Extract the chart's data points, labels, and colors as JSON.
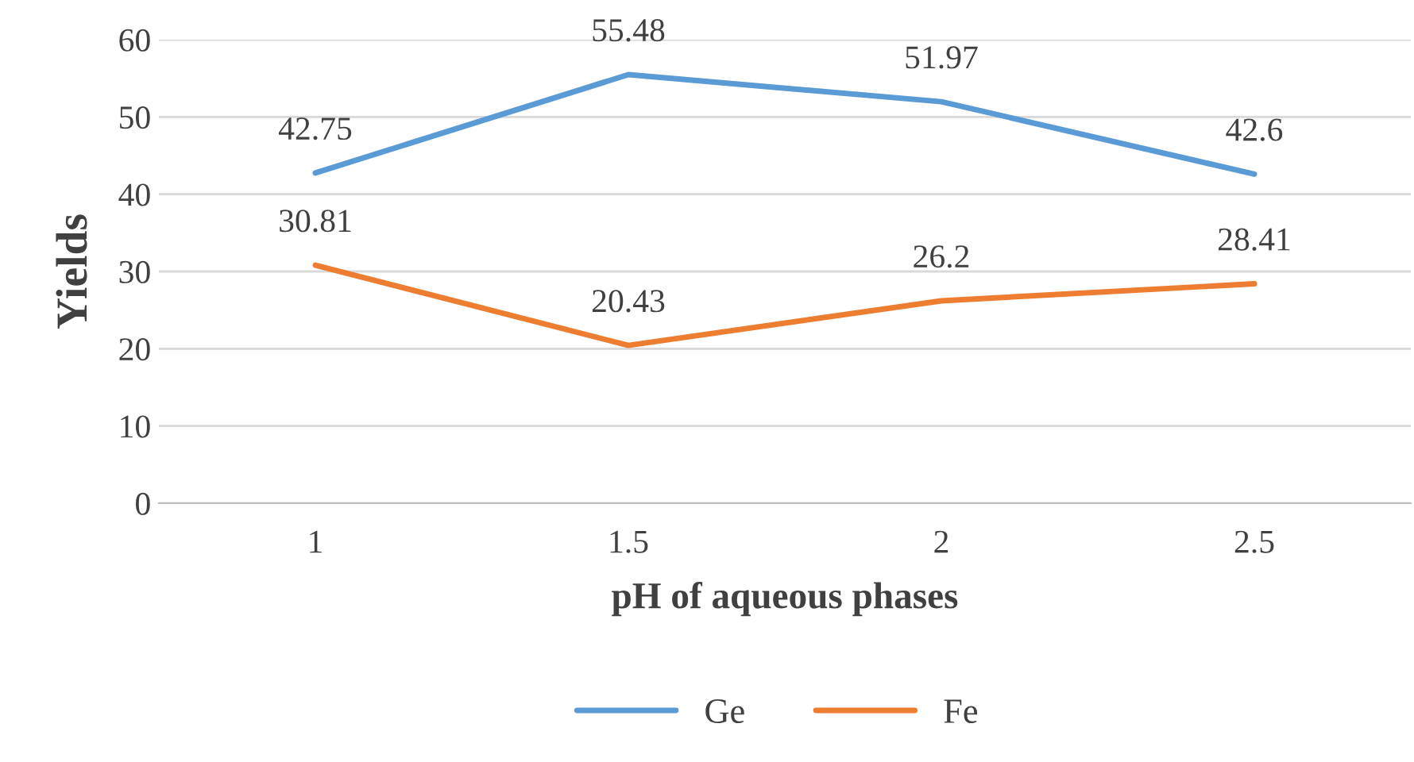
{
  "chart_data": {
    "type": "line",
    "xlabel": "pH of aqueous phases",
    "ylabel": "Yields",
    "categories": [
      "1",
      "1.5",
      "2",
      "2.5"
    ],
    "series": [
      {
        "name": "Ge",
        "color": "#5b9bd5",
        "values": [
          42.75,
          55.48,
          51.97,
          42.6
        ]
      },
      {
        "name": "Fe",
        "color": "#ed7d31",
        "values": [
          30.81,
          20.43,
          26.2,
          28.41
        ]
      }
    ],
    "ylim": [
      0,
      60
    ],
    "yticks": [
      0,
      10,
      20,
      30,
      40,
      50,
      60
    ],
    "grid": "y",
    "legend": "bottom",
    "data_labels": true,
    "marker": "none",
    "line_style": "solid"
  }
}
